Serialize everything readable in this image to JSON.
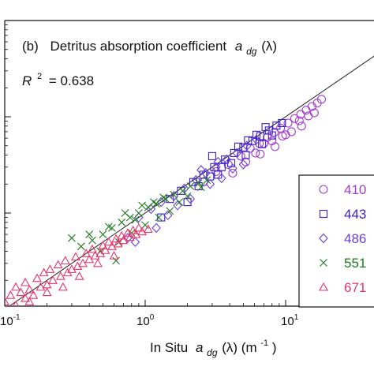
{
  "chart_data": {
    "type": "scatter",
    "panel_label": "(b)",
    "title_prefix": "Detritus absorption coefficient",
    "title_symbol": "a",
    "title_subscript": "dg",
    "title_suffix": "(λ)",
    "r2_label": "R",
    "r2_exponent": "2",
    "r2_value": "= 0.638",
    "xlabel_prefix": "In Situ",
    "xlabel_symbol": "a",
    "xlabel_subscript": "dg",
    "xlabel_suffix": "(λ) (m",
    "xlabel_exponent": "-1",
    "xlabel_close": ")",
    "x_scale": "log",
    "y_scale": "log",
    "xlim": [
      0.1,
      60
    ],
    "ylim": [
      0.1,
      40
    ],
    "x_tick_labels": [
      {
        "base": "10",
        "exp": "-1",
        "value": 0.1
      },
      {
        "base": "10",
        "exp": "0",
        "value": 1
      },
      {
        "base": "10",
        "exp": "1",
        "value": 10
      }
    ],
    "y_major_ticks": [
      1,
      10
    ],
    "one_to_one_line": true,
    "legend": {
      "placement": "right"
    },
    "colors": {
      "410": "#a23ccf",
      "443": "#3a1fc8",
      "486": "#6a3fd8",
      "551": "#1e7a1e",
      "671": "#e8336a"
    },
    "series": [
      {
        "name": "410",
        "marker": "circle",
        "color": "#a23ccf",
        "x": [
          2.6,
          3.2,
          3.9,
          4.8,
          5.6,
          6.5,
          7.4,
          8.3,
          9.2,
          10.4,
          11.6,
          12.8,
          14.0,
          15.4,
          16.8,
          18.0,
          4.2,
          5.2,
          6.1,
          7.0,
          8.0,
          9.5,
          11.0,
          12.5,
          14.5,
          16.0,
          6.6,
          8.4,
          10.0,
          13.0
        ],
        "y": [
          2.1,
          2.7,
          3.2,
          3.9,
          4.7,
          5.3,
          6.1,
          6.9,
          7.6,
          8.6,
          9.6,
          10.6,
          11.7,
          12.8,
          13.9,
          15.2,
          2.6,
          3.4,
          4.2,
          5.3,
          5.6,
          6.3,
          7.0,
          9.1,
          10.2,
          11.0,
          4.1,
          4.9,
          6.5,
          8.0
        ]
      },
      {
        "name": "443",
        "marker": "square",
        "color": "#3a1fc8",
        "x": [
          1.5,
          1.8,
          2.2,
          2.6,
          3.1,
          3.7,
          4.3,
          5.0,
          5.8,
          6.6,
          7.6,
          8.6,
          2.0,
          2.9,
          3.5,
          4.6,
          5.4,
          6.2,
          7.2,
          9.4,
          1.3,
          2.4,
          3.3,
          4.1,
          5.2,
          6.8,
          8.0,
          3.0
        ],
        "y": [
          1.4,
          1.7,
          2.1,
          2.5,
          3.0,
          3.6,
          4.2,
          4.8,
          5.6,
          6.3,
          7.2,
          8.1,
          1.3,
          2.4,
          3.0,
          4.9,
          5.7,
          6.5,
          7.8,
          8.6,
          0.9,
          1.9,
          2.5,
          3.3,
          4.0,
          5.2,
          6.4,
          3.9
        ]
      },
      {
        "name": "486",
        "marker": "diamond",
        "color": "#6a3fd8",
        "x": [
          0.9,
          1.1,
          1.3,
          1.6,
          1.9,
          2.3,
          2.7,
          3.2,
          3.8,
          4.5,
          5.3,
          6.2,
          0.75,
          1.2,
          1.7,
          2.1,
          2.9,
          3.5,
          4.2,
          5.0,
          0.85,
          1.45,
          2.5,
          3.3
        ],
        "y": [
          0.9,
          1.1,
          1.3,
          1.5,
          1.8,
          2.2,
          2.6,
          3.0,
          3.6,
          4.2,
          5.0,
          5.8,
          0.55,
          0.7,
          1.2,
          1.4,
          2.0,
          2.3,
          2.9,
          3.2,
          0.5,
          0.95,
          2.8,
          3.4
        ]
      },
      {
        "name": "551",
        "marker": "x",
        "color": "#1e7a1e",
        "x": [
          0.35,
          0.42,
          0.5,
          0.58,
          0.68,
          0.78,
          0.9,
          1.05,
          1.2,
          1.4,
          1.6,
          1.85,
          2.1,
          2.4,
          2.75,
          0.4,
          0.55,
          0.65,
          0.8,
          1.0,
          1.25,
          1.5,
          1.75,
          0.3,
          0.48,
          0.72,
          0.95,
          1.15,
          1.35,
          2.0,
          2.5,
          0.62,
          0.85
        ],
        "y": [
          0.45,
          0.52,
          0.6,
          0.7,
          0.8,
          0.9,
          1.0,
          1.15,
          1.25,
          1.4,
          1.55,
          1.7,
          1.9,
          2.05,
          2.2,
          0.6,
          0.72,
          0.5,
          0.62,
          0.75,
          0.9,
          1.05,
          1.3,
          0.55,
          0.4,
          1.0,
          1.2,
          1.3,
          1.45,
          1.5,
          1.85,
          0.32,
          0.85
        ]
      },
      {
        "name": "671",
        "marker": "triangle",
        "color": "#e8336a",
        "x": [
          0.1,
          0.11,
          0.12,
          0.13,
          0.14,
          0.15,
          0.16,
          0.18,
          0.2,
          0.22,
          0.25,
          0.28,
          0.3,
          0.33,
          0.36,
          0.4,
          0.44,
          0.48,
          0.52,
          0.58,
          0.64,
          0.7,
          0.78,
          0.86,
          0.95,
          1.05,
          0.12,
          0.14,
          0.17,
          0.19,
          0.21,
          0.24,
          0.27,
          0.32,
          0.38,
          0.42,
          0.5,
          0.55,
          0.62,
          0.68,
          0.75,
          0.82,
          0.9,
          0.11,
          0.15,
          0.2,
          0.26,
          0.34,
          0.46,
          0.6
        ],
        "y": [
          0.12,
          0.14,
          0.11,
          0.15,
          0.13,
          0.16,
          0.14,
          0.17,
          0.18,
          0.2,
          0.22,
          0.24,
          0.26,
          0.28,
          0.3,
          0.33,
          0.36,
          0.38,
          0.41,
          0.45,
          0.48,
          0.52,
          0.56,
          0.6,
          0.64,
          0.68,
          0.17,
          0.19,
          0.21,
          0.24,
          0.26,
          0.29,
          0.32,
          0.35,
          0.38,
          0.42,
          0.46,
          0.5,
          0.54,
          0.58,
          0.62,
          0.66,
          0.7,
          0.1,
          0.12,
          0.15,
          0.17,
          0.22,
          0.3,
          0.36
        ]
      }
    ]
  }
}
